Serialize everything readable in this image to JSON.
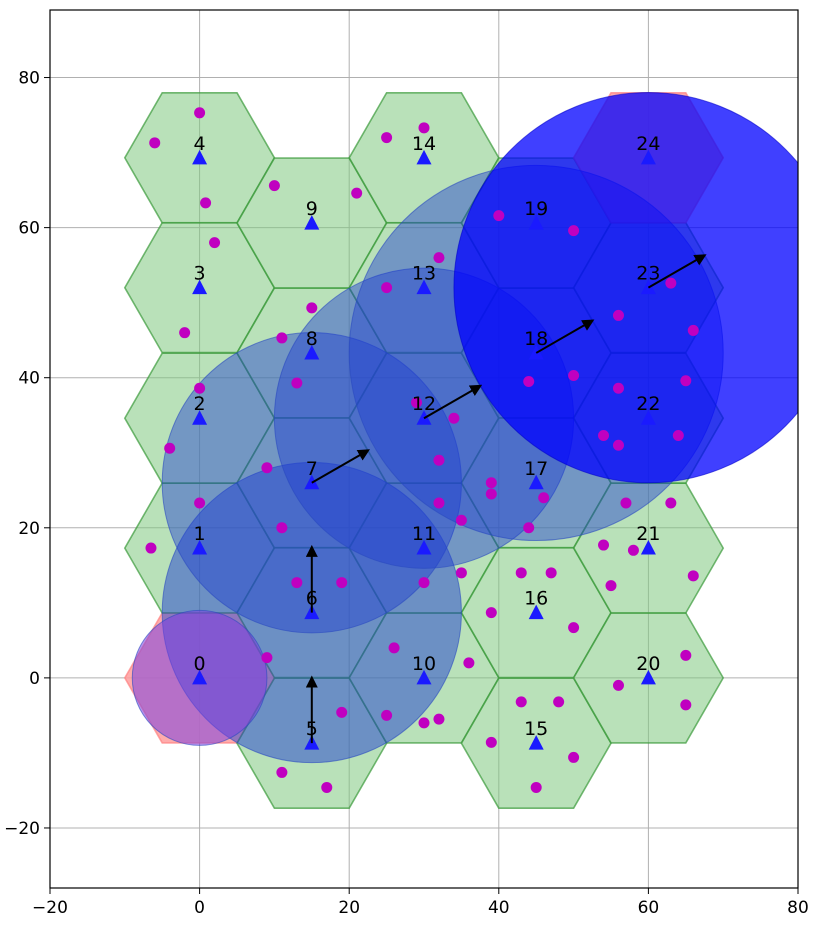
{
  "chart_data": {
    "type": "scatter",
    "title": "",
    "xlabel": "",
    "ylabel": "",
    "xlim": [
      -20,
      80
    ],
    "ylim": [
      -28,
      89
    ],
    "grid": true,
    "xticks": [
      -20,
      0,
      20,
      40,
      60,
      80
    ],
    "yticks": [
      -20,
      0,
      20,
      40,
      60,
      80
    ],
    "hex_radius": 10,
    "colors": {
      "cell_fill": "#7fc97f",
      "cell_edge": "#3a9a3a",
      "cell_highlight_fill": "#ff9e9e",
      "station": "#1a1aff",
      "user": "#c000c0",
      "coverage": "#1f3fd0",
      "coverage_strong": "#0000ff",
      "arrow": "#000000"
    },
    "cells": [
      {
        "id": "0",
        "x": 0,
        "y": 0,
        "highlight": true
      },
      {
        "id": "1",
        "x": 0,
        "y": 17.3
      },
      {
        "id": "2",
        "x": 0,
        "y": 34.6
      },
      {
        "id": "3",
        "x": 0,
        "y": 52
      },
      {
        "id": "4",
        "x": 0,
        "y": 69.3
      },
      {
        "id": "5",
        "x": 15,
        "y": -8.7
      },
      {
        "id": "6",
        "x": 15,
        "y": 8.7
      },
      {
        "id": "7",
        "x": 15,
        "y": 26
      },
      {
        "id": "8",
        "x": 15,
        "y": 43.3
      },
      {
        "id": "9",
        "x": 15,
        "y": 60.6
      },
      {
        "id": "10",
        "x": 30,
        "y": 0
      },
      {
        "id": "11",
        "x": 30,
        "y": 17.3
      },
      {
        "id": "12",
        "x": 30,
        "y": 34.6
      },
      {
        "id": "13",
        "x": 30,
        "y": 52
      },
      {
        "id": "14",
        "x": 30,
        "y": 69.3
      },
      {
        "id": "15",
        "x": 45,
        "y": -8.7
      },
      {
        "id": "16",
        "x": 45,
        "y": 8.7
      },
      {
        "id": "17",
        "x": 45,
        "y": 26
      },
      {
        "id": "18",
        "x": 45,
        "y": 43.3
      },
      {
        "id": "19",
        "x": 45,
        "y": 60.6
      },
      {
        "id": "20",
        "x": 60,
        "y": 0
      },
      {
        "id": "21",
        "x": 60,
        "y": 17.3
      },
      {
        "id": "22",
        "x": 60,
        "y": 34.6
      },
      {
        "id": "23",
        "x": 60,
        "y": 52
      },
      {
        "id": "24",
        "x": 60,
        "y": 69.3,
        "highlight": true
      }
    ],
    "coverage_circles": [
      {
        "x": 15,
        "y": 8.7,
        "r": 20,
        "opacity": 0.5
      },
      {
        "x": 15,
        "y": 26,
        "r": 20,
        "opacity": 0.45
      },
      {
        "x": 30,
        "y": 34.6,
        "r": 20,
        "opacity": 0.45
      },
      {
        "x": 45,
        "y": 43.3,
        "r": 25,
        "opacity": 0.45
      },
      {
        "x": 60,
        "y": 52,
        "r": 26,
        "opacity": 0.75
      },
      {
        "x": 0,
        "y": 0,
        "r": 9,
        "opacity": 0.55
      }
    ],
    "arrows": [
      {
        "x": 15,
        "y": -8.7,
        "dx": 0,
        "dy": 8.7
      },
      {
        "x": 15,
        "y": 8.7,
        "dx": 0,
        "dy": 8.7
      },
      {
        "x": 15,
        "y": 26,
        "dx": 7.5,
        "dy": 4.3
      },
      {
        "x": 30,
        "y": 34.6,
        "dx": 7.5,
        "dy": 4.3
      },
      {
        "x": 45,
        "y": 43.3,
        "dx": 7.5,
        "dy": 4.3
      },
      {
        "x": 60,
        "y": 52,
        "dx": 7.5,
        "dy": 4.3
      }
    ],
    "users": [
      [
        0,
        75.3
      ],
      [
        -6,
        71.3
      ],
      [
        0.8,
        63.3
      ],
      [
        2,
        58
      ],
      [
        -2,
        46
      ],
      [
        0,
        38.6
      ],
      [
        -4,
        30.6
      ],
      [
        0,
        23.3
      ],
      [
        -6.5,
        17.3
      ],
      [
        10,
        65.6
      ],
      [
        15,
        49.3
      ],
      [
        11,
        45.3
      ],
      [
        13,
        39.3
      ],
      [
        9,
        28
      ],
      [
        11,
        20
      ],
      [
        13,
        12.7
      ],
      [
        19,
        12.7
      ],
      [
        9,
        2.7
      ],
      [
        19,
        -4.6
      ],
      [
        11,
        -12.6
      ],
      [
        17,
        -14.6
      ],
      [
        21,
        64.6
      ],
      [
        25,
        72
      ],
      [
        30,
        73.3
      ],
      [
        32,
        56
      ],
      [
        25,
        52
      ],
      [
        29,
        36.7
      ],
      [
        34,
        34.6
      ],
      [
        32,
        29
      ],
      [
        32,
        23.3
      ],
      [
        35,
        21
      ],
      [
        30,
        12.7
      ],
      [
        35,
        14
      ],
      [
        26,
        4
      ],
      [
        36,
        2
      ],
      [
        25,
        -5
      ],
      [
        30,
        -6
      ],
      [
        32,
        -5.5
      ],
      [
        39,
        -8.6
      ],
      [
        39,
        8.7
      ],
      [
        43,
        14
      ],
      [
        47,
        14
      ],
      [
        44,
        20
      ],
      [
        46,
        24
      ],
      [
        39,
        26
      ],
      [
        39,
        24.5
      ],
      [
        40,
        61.6
      ],
      [
        50,
        59.6
      ],
      [
        50,
        40.3
      ],
      [
        44,
        39.5
      ],
      [
        56,
        48.3
      ],
      [
        56,
        38.6
      ],
      [
        54,
        32.3
      ],
      [
        56,
        31
      ],
      [
        57,
        23.3
      ],
      [
        63,
        23.3
      ],
      [
        64,
        32.3
      ],
      [
        65,
        39.6
      ],
      [
        66,
        46.3
      ],
      [
        63,
        52.6
      ],
      [
        54,
        17.7
      ],
      [
        58,
        17
      ],
      [
        55,
        12.3
      ],
      [
        66,
        13.6
      ],
      [
        50,
        6.7
      ],
      [
        43,
        -3.2
      ],
      [
        48,
        -3.2
      ],
      [
        50,
        -10.6
      ],
      [
        45,
        -14.6
      ],
      [
        56,
        -1
      ],
      [
        65,
        3
      ],
      [
        65,
        -3.6
      ]
    ]
  }
}
